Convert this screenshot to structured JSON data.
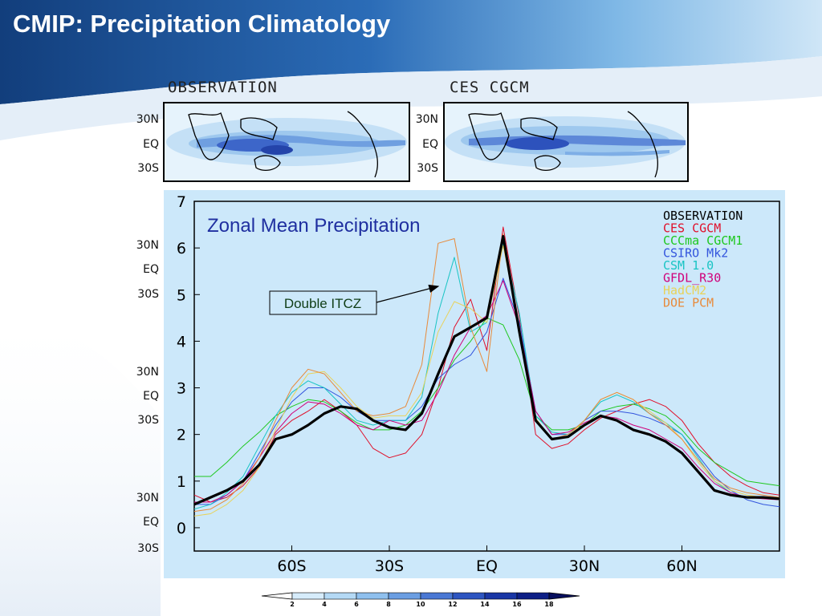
{
  "slide": {
    "title": "CMIP: Precipitation Climatology"
  },
  "maps": {
    "left_title": "OBSERVATION",
    "right_title": "CES  CGCM",
    "lat_labels": [
      "30N",
      "EQ",
      "30S"
    ]
  },
  "colors": {
    "title_bar": "#1d4f8f",
    "panel": "#cce8fa",
    "observation": "#000000",
    "ces_cgcm": "#e0102a",
    "cccma_cgcm1": "#1ec81e",
    "csiro_mk2": "#3355dd",
    "csm_1_0": "#19c4c4",
    "gfdl_r30": "#d0007a",
    "hadcm2": "#e8d25a",
    "doe_pcm": "#e88a3a"
  },
  "annotation": {
    "label": "Double ITCZ"
  },
  "colorbar": {
    "ticks": [
      "2",
      "4",
      "6",
      "8",
      "10",
      "12",
      "14",
      "16",
      "18"
    ],
    "colors": [
      "#ffffff",
      "#d6ecfb",
      "#b4d9f5",
      "#8fc0ee",
      "#6b9ee2",
      "#4a78d4",
      "#2d55c1",
      "#1a36a5",
      "#0e1f86",
      "#070f5e"
    ]
  },
  "chart_data": {
    "type": "line",
    "title": "Zonal Mean Precipitation",
    "xlabel": "",
    "ylabel": "",
    "xlim": [
      -90,
      90
    ],
    "ylim": [
      -0.5,
      7
    ],
    "xticks": [
      {
        "value": -60,
        "label": "60S"
      },
      {
        "value": -30,
        "label": "30S"
      },
      {
        "value": 0,
        "label": "EQ"
      },
      {
        "value": 30,
        "label": "30N"
      },
      {
        "value": 60,
        "label": "60N"
      }
    ],
    "yticks": [
      0,
      1,
      2,
      3,
      4,
      5,
      6,
      7
    ],
    "legend_position": "top-right",
    "x": [
      -90,
      -85,
      -80,
      -75,
      -70,
      -65,
      -60,
      -55,
      -50,
      -45,
      -40,
      -35,
      -30,
      -25,
      -20,
      -15,
      -10,
      -5,
      0,
      5,
      10,
      15,
      20,
      25,
      30,
      35,
      40,
      45,
      50,
      55,
      60,
      65,
      70,
      75,
      80,
      85,
      90
    ],
    "series": [
      {
        "name": "OBSERVATION",
        "color": "#000000",
        "width": 3.2,
        "values": [
          0.5,
          0.65,
          0.8,
          1.0,
          1.35,
          1.9,
          2.0,
          2.2,
          2.45,
          2.6,
          2.55,
          2.3,
          2.15,
          2.1,
          2.45,
          3.3,
          4.1,
          4.3,
          4.5,
          6.25,
          4.2,
          2.3,
          1.9,
          1.95,
          2.2,
          2.4,
          2.3,
          2.1,
          2.0,
          1.85,
          1.6,
          1.2,
          0.8,
          0.7,
          0.65,
          0.65,
          0.62
        ]
      },
      {
        "name": "CES  CGCM",
        "color": "#e0102a",
        "width": 1,
        "values": [
          0.7,
          0.55,
          0.65,
          0.9,
          1.3,
          2.0,
          2.3,
          2.5,
          2.75,
          2.5,
          2.2,
          1.7,
          1.5,
          1.6,
          2.0,
          3.0,
          4.3,
          4.9,
          3.8,
          6.45,
          4.5,
          2.0,
          1.7,
          1.8,
          2.1,
          2.35,
          2.5,
          2.65,
          2.75,
          2.6,
          2.3,
          1.8,
          1.4,
          1.1,
          0.9,
          0.75,
          0.7
        ]
      },
      {
        "name": "CCCma  CGCM1",
        "color": "#1ec81e",
        "width": 1,
        "values": [
          1.1,
          1.1,
          1.4,
          1.75,
          2.05,
          2.4,
          2.6,
          2.75,
          2.7,
          2.5,
          2.25,
          2.1,
          2.1,
          2.2,
          2.5,
          3.0,
          3.6,
          4.0,
          4.5,
          4.35,
          3.6,
          2.4,
          2.1,
          2.1,
          2.2,
          2.5,
          2.6,
          2.65,
          2.55,
          2.4,
          2.1,
          1.7,
          1.4,
          1.2,
          1.0,
          0.95,
          0.9
        ]
      },
      {
        "name": "CSIRO  Mk2",
        "color": "#3355dd",
        "width": 1,
        "values": [
          0.5,
          0.5,
          0.7,
          1.0,
          1.6,
          2.2,
          2.7,
          3.0,
          3.0,
          2.8,
          2.5,
          2.3,
          2.3,
          2.3,
          2.6,
          3.2,
          3.5,
          3.7,
          4.2,
          5.35,
          4.4,
          2.5,
          2.0,
          2.0,
          2.3,
          2.5,
          2.5,
          2.45,
          2.35,
          2.2,
          2.0,
          1.55,
          1.1,
          0.8,
          0.6,
          0.5,
          0.45
        ]
      },
      {
        "name": "CSM  1.0",
        "color": "#19c4c4",
        "width": 1,
        "values": [
          0.4,
          0.5,
          0.75,
          1.1,
          1.75,
          2.4,
          2.9,
          3.15,
          3.0,
          2.65,
          2.3,
          2.2,
          2.3,
          2.3,
          2.8,
          4.6,
          5.8,
          4.2,
          4.4,
          6.1,
          4.6,
          2.4,
          2.05,
          2.0,
          2.3,
          2.7,
          2.85,
          2.7,
          2.45,
          2.25,
          2.0,
          1.5,
          1.0,
          0.75,
          0.65,
          0.65,
          0.62
        ]
      },
      {
        "name": "GFDL_R30",
        "color": "#d0007a",
        "width": 1,
        "values": [
          0.55,
          0.55,
          0.7,
          1.0,
          1.5,
          2.05,
          2.45,
          2.7,
          2.65,
          2.45,
          2.2,
          2.1,
          2.3,
          2.2,
          2.3,
          2.9,
          3.7,
          4.3,
          4.55,
          5.3,
          4.3,
          2.5,
          2.0,
          2.05,
          2.25,
          2.4,
          2.35,
          2.2,
          2.1,
          1.9,
          1.7,
          1.3,
          0.95,
          0.75,
          0.65,
          0.62,
          0.6
        ]
      },
      {
        "name": "HadCM2",
        "color": "#e8d25a",
        "width": 1,
        "values": [
          0.25,
          0.3,
          0.5,
          0.8,
          1.3,
          2.1,
          2.8,
          3.3,
          3.35,
          3.0,
          2.6,
          2.35,
          2.4,
          2.4,
          2.9,
          4.2,
          4.85,
          4.7,
          4.4,
          6.05,
          4.3,
          2.35,
          1.9,
          1.95,
          2.3,
          2.75,
          2.9,
          2.75,
          2.5,
          2.25,
          1.9,
          1.4,
          1.0,
          0.8,
          0.7,
          0.65,
          0.6
        ]
      },
      {
        "name": "DOE  PCM",
        "color": "#e88a3a",
        "width": 1,
        "values": [
          0.35,
          0.4,
          0.6,
          0.95,
          1.5,
          2.3,
          3.0,
          3.4,
          3.3,
          2.9,
          2.5,
          2.4,
          2.45,
          2.6,
          3.5,
          6.1,
          6.2,
          4.3,
          3.35,
          6.3,
          4.2,
          2.3,
          1.9,
          2.0,
          2.3,
          2.75,
          2.9,
          2.75,
          2.45,
          2.2,
          1.9,
          1.45,
          1.05,
          0.85,
          0.75,
          0.7,
          0.65
        ]
      }
    ]
  }
}
